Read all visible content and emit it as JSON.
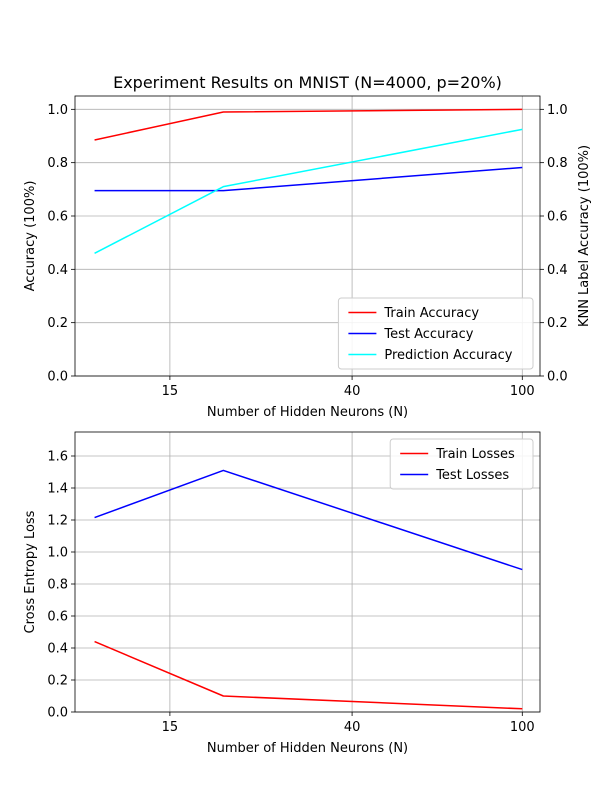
{
  "figure": {
    "title": "Experiment Results on MNIST (N=4000, p=20%)"
  },
  "chart_data": [
    {
      "type": "line",
      "xlabel": "Number of Hidden Neurons (N)",
      "ylabel": "Accuracy (100%)",
      "ylabel_right": "KNN Label Accuracy (100%)",
      "x": [
        10,
        20,
        100
      ],
      "xscale": "log",
      "xlim": [
        9.0,
        110
      ],
      "xticks": [
        15,
        40,
        100
      ],
      "ylim": [
        0.0,
        1.05
      ],
      "yticks": [
        0.0,
        0.2,
        0.4,
        0.6,
        0.8,
        1.0
      ],
      "grid": true,
      "legend_position": "lower-right",
      "series": [
        {
          "name": "Train Accuracy",
          "color": "#ff0000",
          "values": [
            0.885,
            0.99,
            1.0
          ]
        },
        {
          "name": "Test Accuracy",
          "color": "#0000ff",
          "values": [
            0.695,
            0.695,
            0.782
          ]
        },
        {
          "name": "Prediction Accuracy",
          "color": "#00ffff",
          "values": [
            0.46,
            0.71,
            0.925
          ]
        }
      ]
    },
    {
      "type": "line",
      "xlabel": "Number of Hidden Neurons (N)",
      "ylabel": "Cross Entropy Loss",
      "x": [
        10,
        20,
        100
      ],
      "xscale": "log",
      "xlim": [
        9.0,
        110
      ],
      "xticks": [
        15,
        40,
        100
      ],
      "ylim": [
        0.0,
        1.75
      ],
      "yticks": [
        0.0,
        0.2,
        0.4,
        0.6,
        0.8,
        1.0,
        1.2,
        1.4,
        1.6
      ],
      "grid": true,
      "legend_position": "upper-right",
      "series": [
        {
          "name": "Train Losses",
          "color": "#ff0000",
          "values": [
            0.44,
            0.1,
            0.02
          ]
        },
        {
          "name": "Test Losses",
          "color": "#0000ff",
          "values": [
            1.215,
            1.51,
            0.89
          ]
        }
      ]
    }
  ]
}
